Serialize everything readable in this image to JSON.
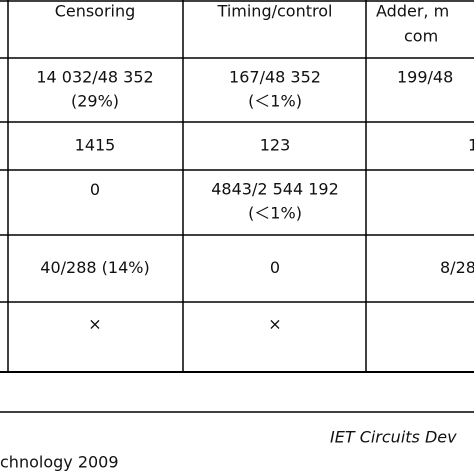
{
  "table": {
    "header": [
      [
        "Censoring"
      ],
      [
        "Timing/control"
      ],
      [
        "Adder, m",
        "com"
      ]
    ],
    "rows": [
      [
        [
          "14 032/48 352",
          "(29%)"
        ],
        [
          "167/48 352",
          "(＜1%)"
        ],
        [
          "199/48"
        ]
      ],
      [
        [
          "1415"
        ],
        [
          "123"
        ],
        [
          "1"
        ]
      ],
      [
        [
          "0"
        ],
        [
          "4843/2 544 192",
          "(＜1%)"
        ]
      ],
      [
        [
          "40/288 (14%)"
        ],
        [
          "0"
        ],
        [
          "8/28"
        ]
      ],
      [
        [
          "×"
        ],
        [
          "×"
        ]
      ]
    ]
  },
  "footer": {
    "journal": "IET Circuits Dev",
    "source": "chnology 2009"
  }
}
